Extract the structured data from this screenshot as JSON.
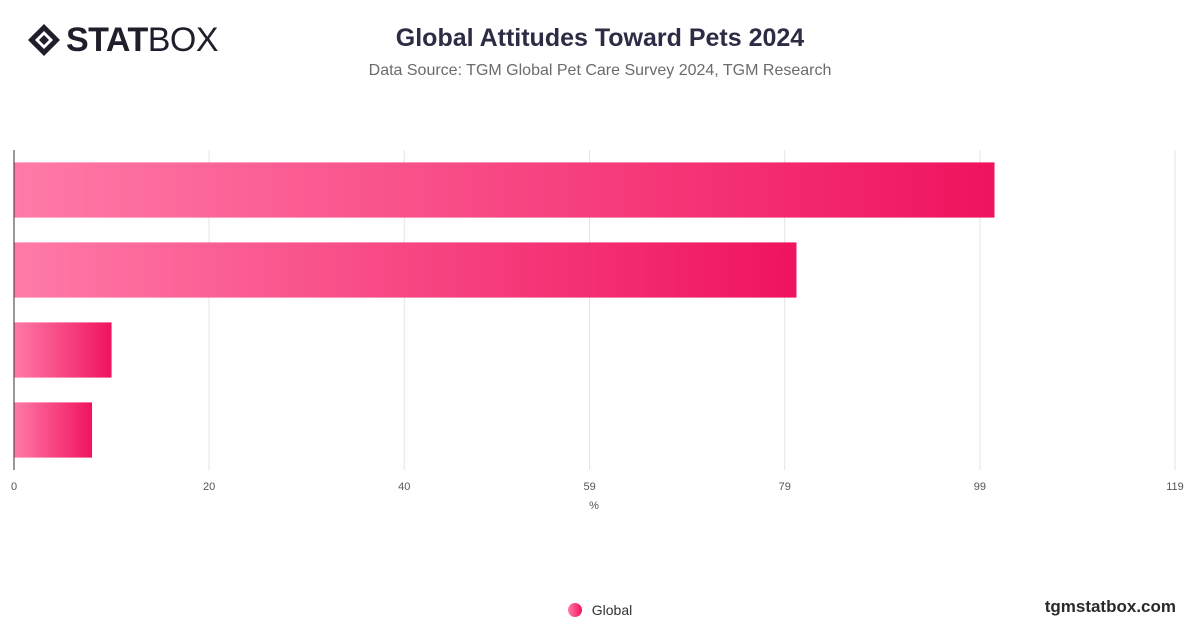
{
  "brand": {
    "logo_part1": "STAT",
    "logo_part2": "BOX",
    "site": "tgmstatbox.com"
  },
  "chart_data": {
    "type": "bar",
    "orientation": "horizontal",
    "title": "Global Attitudes Toward Pets 2024",
    "subtitle": "Data Source: TGM Global Pet Care Survey 2024, TGM Research",
    "xlabel": "%",
    "xlim": [
      0,
      119
    ],
    "xticks": [
      0,
      20,
      40,
      59,
      79,
      99,
      119
    ],
    "grid": true,
    "legend_position": "bottom",
    "colors": {
      "bar_start": "#ff7aa8",
      "bar_end": "#f0135f"
    },
    "series": [
      {
        "name": "Global",
        "values": [
          100.5,
          80.2,
          10,
          8
        ]
      }
    ]
  }
}
